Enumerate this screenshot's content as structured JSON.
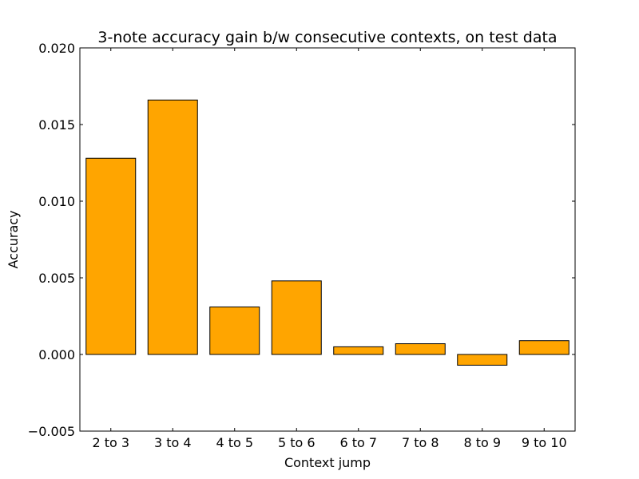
{
  "chart_data": {
    "type": "bar",
    "title": "3-note accuracy gain b/w consecutive contexts, on test data",
    "xlabel": "Context jump",
    "ylabel": "Accuracy",
    "categories": [
      "2 to 3",
      "3 to 4",
      "4 to 5",
      "5 to 6",
      "6 to 7",
      "7 to 8",
      "8 to 9",
      "9 to 10"
    ],
    "values": [
      0.0128,
      0.0166,
      0.0031,
      0.0048,
      0.0005,
      0.0007,
      -0.0007,
      0.0009
    ],
    "ylim": [
      -0.005,
      0.02
    ],
    "yticks": [
      -0.005,
      0.0,
      0.005,
      0.01,
      0.015,
      0.02
    ],
    "ytick_labels": [
      "−0.005",
      "0.000",
      "0.005",
      "0.010",
      "0.015",
      "0.020"
    ],
    "bar_color": "#ffa500",
    "edge_color": "#000000",
    "grid": false,
    "legend": "none"
  }
}
